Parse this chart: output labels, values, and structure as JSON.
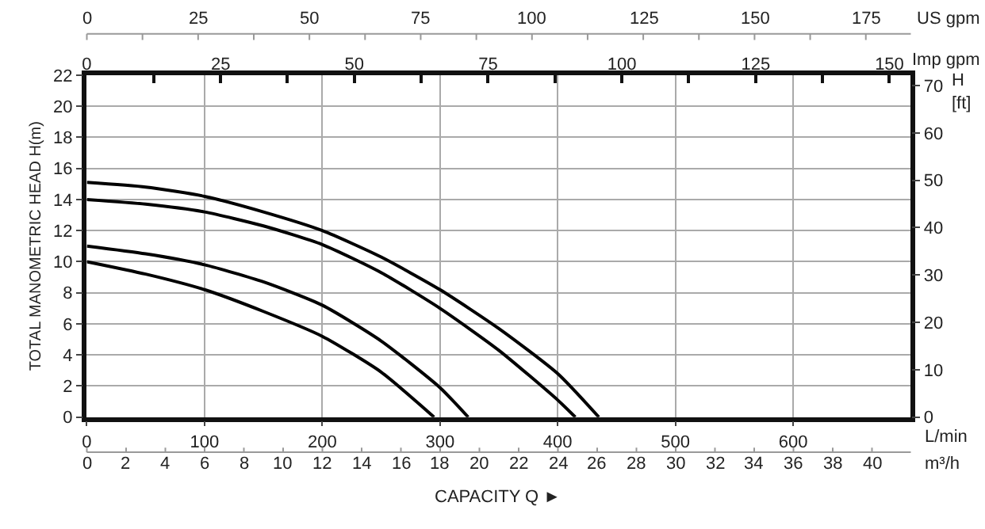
{
  "chart_data": {
    "type": "line",
    "xlabel": "L/min",
    "x2label": "Imp gpm",
    "ylabel": "TOTAL MANOMETRIC HEAD H(m)",
    "y2label": "H [ft]",
    "annotations": [
      "CAPACITY Q ►",
      "0",
      "2",
      "4",
      "6",
      "8",
      "10",
      "12",
      "14",
      "16",
      "18",
      "20",
      "22",
      "24",
      "26",
      "28",
      "30",
      "32",
      "34",
      "36",
      "38",
      "40",
      "m³/h",
      "0",
      "25",
      "50",
      "75",
      "100",
      "125",
      "150",
      "175",
      "US gpm"
    ],
    "series": [
      {
        "color": "#000000",
        "x": [
          0,
          50,
          100,
          150,
          200,
          250,
          300,
          350,
          400,
          435
        ],
        "values": [
          15.1,
          14.8,
          14.2,
          13.2,
          12.0,
          10.3,
          8.2,
          5.7,
          2.8,
          0
        ]
      },
      {
        "color": "#000000",
        "x": [
          0,
          50,
          100,
          150,
          200,
          250,
          300,
          350,
          400,
          415
        ],
        "values": [
          14.0,
          13.7,
          13.2,
          12.3,
          11.1,
          9.3,
          7.0,
          4.3,
          1.1,
          0
        ]
      },
      {
        "color": "#000000",
        "x": [
          0,
          50,
          100,
          150,
          200,
          250,
          300,
          324
        ],
        "values": [
          11.0,
          10.5,
          9.8,
          8.7,
          7.2,
          4.9,
          1.9,
          0
        ]
      },
      {
        "color": "#000000",
        "x": [
          0,
          50,
          100,
          150,
          200,
          250,
          295
        ],
        "values": [
          10.0,
          9.2,
          8.2,
          6.8,
          5.2,
          2.9,
          0
        ]
      }
    ],
    "xlim": [
      0,
      700
    ],
    "xticks": [
      0,
      100,
      200,
      300,
      400,
      500,
      600
    ],
    "x2lim": [
      0,
      154
    ],
    "x2ticks": [
      0,
      {
        "value": 12.5,
        "label": null
      },
      25,
      {
        "value": 37.5,
        "label": null
      },
      50,
      {
        "value": 62.5,
        "label": null
      },
      75,
      {
        "value": 87.5,
        "label": null
      },
      100,
      {
        "value": 112.5,
        "label": null
      },
      125,
      {
        "value": 137.5,
        "label": null
      },
      150
    ],
    "ylim": [
      0,
      22
    ],
    "yticks": [
      0,
      2,
      4,
      6,
      8,
      10,
      12,
      14,
      16,
      18,
      20,
      22
    ],
    "y2lim": [
      0,
      72.2
    ],
    "y2ticks": [
      0,
      10,
      20,
      30,
      40,
      50,
      60,
      70
    ],
    "grid": true,
    "marker": "none",
    "line_style": "solid"
  }
}
